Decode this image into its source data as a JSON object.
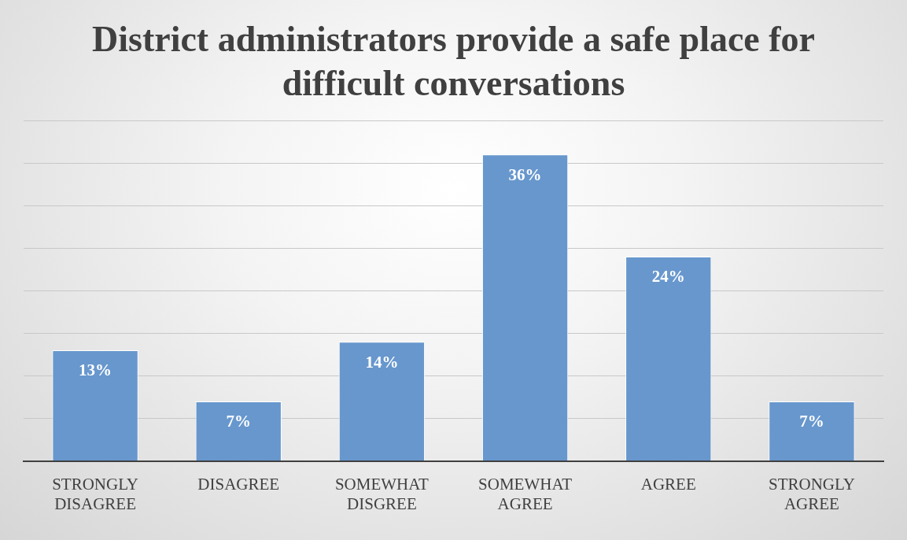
{
  "chart_data": {
    "type": "bar",
    "title": "District administrators provide a safe place for difficult conversations",
    "categories": [
      "STRONGLY DISAGREE",
      "DISAGREE",
      "SOMEWHAT DISGREE",
      "SOMEWHAT AGREE",
      "AGREE",
      "STRONGLY AGREE"
    ],
    "values": [
      13,
      7,
      14,
      36,
      24,
      7
    ],
    "value_labels": [
      "13%",
      "7%",
      "14%",
      "36%",
      "24%",
      "7%"
    ],
    "color": "#6797cd",
    "ylim": [
      0,
      40
    ],
    "yticks": [
      {
        "value": 0,
        "label": null
      },
      {
        "value": 5,
        "label": null
      },
      {
        "value": 10,
        "label": null
      },
      {
        "value": 15,
        "label": null
      },
      {
        "value": 20,
        "label": null
      },
      {
        "value": 25,
        "label": null
      },
      {
        "value": 30,
        "label": null
      },
      {
        "value": 35,
        "label": null
      },
      {
        "value": 40,
        "label": null
      }
    ],
    "grid": "y",
    "tick_labels": "x"
  }
}
